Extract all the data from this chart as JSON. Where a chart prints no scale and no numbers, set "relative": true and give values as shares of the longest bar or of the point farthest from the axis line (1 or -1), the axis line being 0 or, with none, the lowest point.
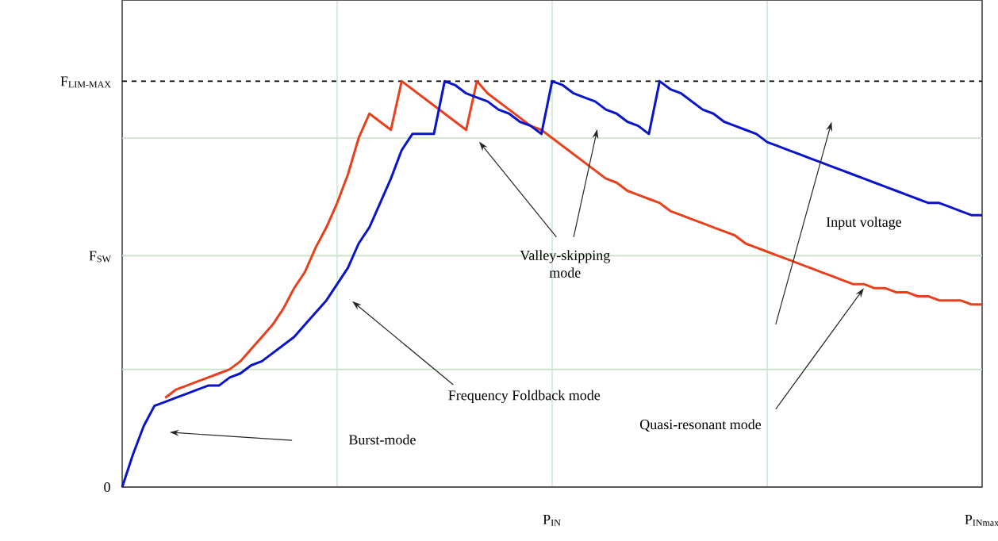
{
  "chart_data": {
    "type": "line",
    "relative": true,
    "grid": "x",
    "categories": [
      null,
      null,
      null,
      null,
      null,
      null,
      null,
      null,
      null,
      null,
      null,
      null,
      null,
      null,
      null,
      null,
      null,
      null,
      null,
      null,
      null,
      null,
      null,
      null,
      null,
      null,
      null,
      null,
      null,
      null,
      null,
      null,
      null,
      null,
      null,
      null,
      null,
      null,
      null,
      null,
      "P$_{IN}$",
      null,
      null,
      null,
      null,
      null,
      null,
      null,
      null,
      null,
      null,
      null,
      null,
      null,
      null,
      null,
      null,
      null,
      null,
      null,
      null,
      null,
      null,
      null,
      null,
      null,
      null,
      null,
      null,
      null,
      null,
      null,
      null,
      null,
      null,
      null,
      null,
      null,
      null,
      null,
      "P$_{INmax}$"
    ],
    "ref_lines": [
      {
        "axis": "y",
        "value": 0.29,
        "label": null,
        "color": "#c6e2c6",
        "line_style": "solid"
      },
      {
        "axis": "y",
        "value": 0.57,
        "label": "F$_{SW}$",
        "color": "#c6e2c6",
        "line_style": "solid"
      },
      {
        "axis": "y",
        "value": 0.86,
        "label": null,
        "color": "#c6e2c6",
        "line_style": "solid"
      },
      {
        "axis": "y",
        "value": 1.0,
        "label": "F$_{LIM-MAX}$",
        "color": "#000000",
        "line_style": "dashed"
      }
    ],
    "series": [
      {
        "color": "#e8401c",
        "values": [
          null,
          null,
          null,
          null,
          0.22,
          0.24,
          0.25,
          0.26,
          0.27,
          0.28,
          0.29,
          0.31,
          0.34,
          0.37,
          0.4,
          0.44,
          0.49,
          0.53,
          0.59,
          0.64,
          0.7,
          0.77,
          0.86,
          0.92,
          0.9,
          0.88,
          1.0,
          0.98,
          0.96,
          0.94,
          0.92,
          0.9,
          0.88,
          1.0,
          0.97,
          0.95,
          0.93,
          0.91,
          0.89,
          0.88,
          0.86,
          0.84,
          0.82,
          0.8,
          0.78,
          0.76,
          0.75,
          0.73,
          0.72,
          0.71,
          0.7,
          0.68,
          0.67,
          0.66,
          0.65,
          0.64,
          0.63,
          0.62,
          0.6,
          0.59,
          0.58,
          0.57,
          0.56,
          0.55,
          0.54,
          0.53,
          0.52,
          0.51,
          0.5,
          0.5,
          0.49,
          0.49,
          0.48,
          0.48,
          0.47,
          0.47,
          0.46,
          0.46,
          0.46,
          0.45,
          0.45
        ]
      },
      {
        "color": "#0a14c8",
        "values": [
          0,
          0.08,
          0.15,
          0.2,
          0.21,
          0.22,
          0.23,
          0.24,
          0.25,
          0.25,
          0.27,
          0.28,
          0.3,
          0.31,
          0.33,
          0.35,
          0.37,
          0.4,
          0.43,
          0.46,
          0.5,
          0.54,
          0.6,
          0.64,
          0.7,
          0.76,
          0.83,
          0.87,
          0.87,
          0.87,
          1.0,
          0.99,
          0.97,
          0.96,
          0.95,
          0.93,
          0.92,
          0.9,
          0.89,
          0.87,
          1.0,
          0.99,
          0.97,
          0.96,
          0.95,
          0.93,
          0.92,
          0.9,
          0.89,
          0.87,
          1.0,
          0.98,
          0.97,
          0.95,
          0.93,
          0.92,
          0.9,
          0.89,
          0.88,
          0.87,
          0.85,
          0.84,
          0.83,
          0.82,
          0.81,
          0.8,
          0.79,
          0.78,
          0.77,
          0.76,
          0.75,
          0.74,
          0.73,
          0.72,
          0.71,
          0.7,
          0.7,
          0.69,
          0.68,
          0.67,
          0.67
        ]
      }
    ],
    "annotations": [
      "0",
      "Burst-mode",
      "Frequency Foldback mode",
      "Valley-skipping mode",
      "Quasi-resonant mode",
      "Input voltage"
    ]
  }
}
